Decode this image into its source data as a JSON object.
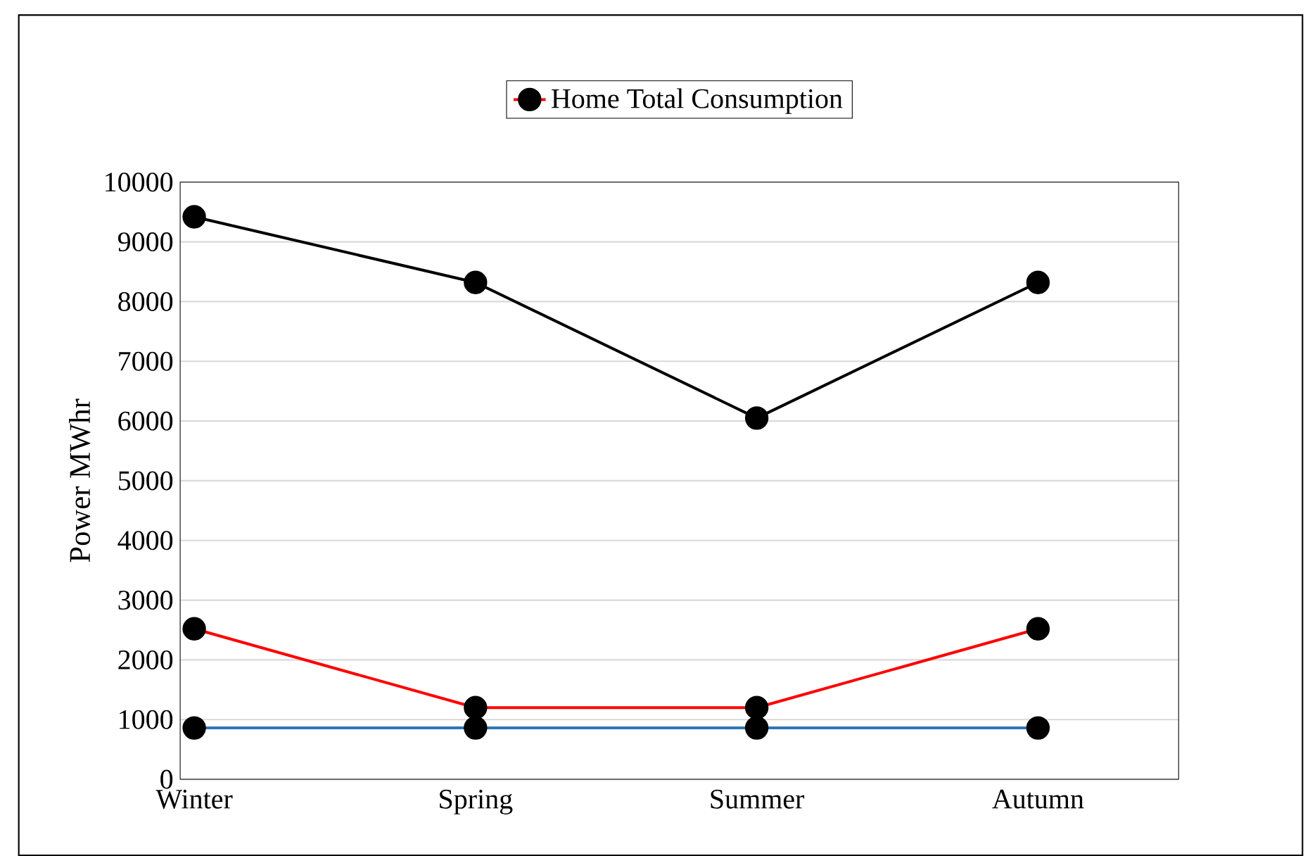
{
  "chart_data": {
    "type": "line",
    "ylabel": "Power MWhr",
    "categories": [
      "Winter",
      "Spring",
      "Summer",
      "Autumn"
    ],
    "series": [
      {
        "color": "#000000",
        "values": [
          9420,
          8320,
          6050,
          8320
        ]
      },
      {
        "name": "Home Total Consumption",
        "color": "#ff0000",
        "values": [
          2520,
          1200,
          1200,
          2520
        ]
      },
      {
        "color": "#2e75b6",
        "values": [
          860,
          860,
          860,
          860
        ]
      }
    ],
    "ylim": [
      0,
      10000
    ],
    "yticks": [
      0,
      1000,
      2000,
      3000,
      4000,
      5000,
      6000,
      7000,
      8000,
      9000,
      10000
    ],
    "grid": "y",
    "legend": "top",
    "marker": "circle",
    "line_style": "solid"
  }
}
